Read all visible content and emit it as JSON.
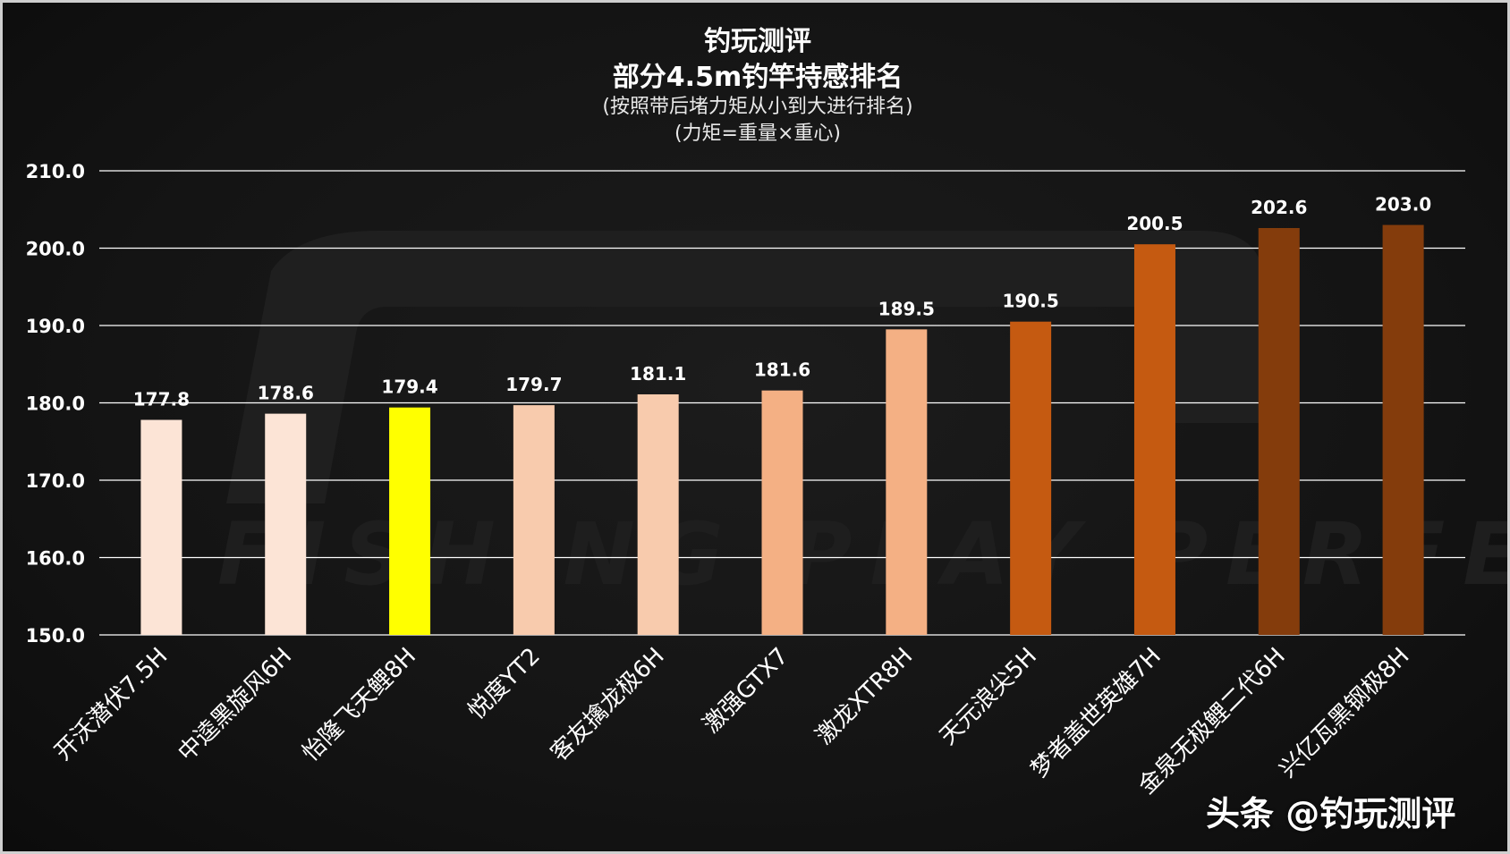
{
  "header": {
    "brand": "钓玩测评",
    "title": "部分4.5m钓竿持感排名",
    "subtitle": "(按照带后堵力矩从小到大进行排名)",
    "note": "(力矩=重量×重心)"
  },
  "watermark": "头条 @钓玩测评",
  "colors": {
    "background": "#141414",
    "grid": "#ffffff",
    "text": "#ffffff"
  },
  "chart_data": {
    "type": "bar",
    "title": "部分4.5m钓竿持感排名",
    "ylim": [
      150,
      210
    ],
    "yticks": [
      150,
      160,
      170,
      180,
      190,
      200,
      210
    ],
    "ytick_labels": [
      "150.0",
      "160.0",
      "170.0",
      "180.0",
      "190.0",
      "200.0",
      "210.0"
    ],
    "grid": true,
    "categories": [
      "开沃潜伏7.5H",
      "中逵黑旋风6H",
      "怡隆飞天鲤8H",
      "悦度YT2",
      "客友擒龙极6H",
      "激强GTX7",
      "激龙XTR8H",
      "天元浪尖5H",
      "梦者盖世英雄7H",
      "金泉无极鲤二代6H",
      "兴亿瓦黑钢极8H"
    ],
    "values": [
      177.8,
      178.6,
      179.4,
      179.7,
      181.1,
      181.6,
      189.5,
      190.5,
      200.5,
      202.6,
      203.0
    ],
    "value_labels": [
      "177.8",
      "178.6",
      "179.4",
      "179.7",
      "181.1",
      "181.6",
      "189.5",
      "190.5",
      "200.5",
      "202.6",
      "203.0"
    ],
    "bar_colors": [
      "#fce4d6",
      "#fce4d6",
      "#ffff00",
      "#f8cbad",
      "#f8cbad",
      "#f4b084",
      "#f4b084",
      "#c55a11",
      "#c55a11",
      "#843c0c",
      "#843c0c"
    ]
  }
}
